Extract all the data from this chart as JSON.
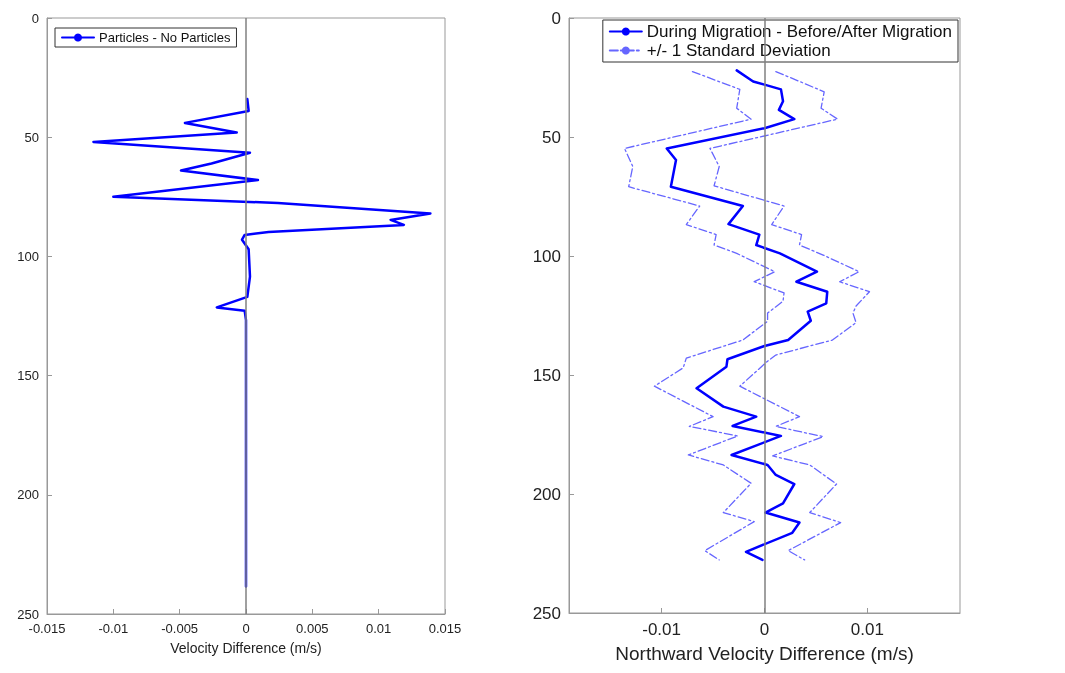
{
  "chart_data": [
    {
      "type": "line",
      "xlabel": "Velocity Difference (m/s)",
      "xlim": [
        -0.015,
        0.015
      ],
      "xticks": [
        -0.015,
        -0.01,
        -0.005,
        0,
        0.005,
        0.01,
        0.015
      ],
      "ylim": [
        250,
        0
      ],
      "yticks": [
        0,
        50,
        100,
        150,
        200,
        250
      ],
      "grid": false,
      "legend": "top left",
      "marker": "none",
      "ref_lines": [
        {
          "axis": "x",
          "value": 0,
          "color": "#808080"
        }
      ],
      "series": [
        {
          "name": "Particles - No Particles",
          "color": "#0000ff",
          "line_style": "solid",
          "x": [
            0.0001,
            0.0002,
            -0.0046,
            -0.0007,
            -0.0115,
            0.0003,
            -0.0026,
            -0.0049,
            0.0009,
            -0.01,
            0.0024,
            0.0139,
            0.0109,
            0.0119,
            0.0017,
            -0.0001,
            -0.0003,
            0.0002,
            0.0003,
            0.0001,
            -0.0022,
            -0.0001,
            0,
            0
          ],
          "values": [
            34,
            39,
            44,
            48,
            52,
            56.5,
            61,
            64,
            68,
            75,
            77.6,
            82,
            84.7,
            86.8,
            89.8,
            91,
            93,
            97,
            108.5,
            117,
            121.4,
            122.8,
            126.7,
            238.5
          ]
        }
      ]
    },
    {
      "type": "line",
      "xlabel": "Northward Velocity Difference (m/s)",
      "xlim": [
        -0.019,
        0.019
      ],
      "xticks": [
        -0.01,
        0,
        0.01
      ],
      "ylim": [
        250,
        0
      ],
      "yticks": [
        0,
        50,
        100,
        150,
        200,
        250
      ],
      "grid": false,
      "legend": "top right",
      "marker": "none",
      "ref_lines": [
        {
          "axis": "x",
          "value": 0,
          "color": "#808080"
        }
      ],
      "series": [
        {
          "name": "During Migration - Before/After Migration",
          "color": "#0000ff",
          "line_style": "solid",
          "x": [
            -0.0027,
            -0.0011,
            0,
            0.0016,
            0.0018,
            0.0014,
            0.0029,
            0,
            -0.0095,
            -0.0086,
            -0.0091,
            -0.0021,
            -0.0035,
            -0.0005,
            -0.0008,
            0.0015,
            0.0051,
            0.0031,
            0.0061,
            0.006,
            0.0042,
            0.0045,
            0.0023,
            0,
            -0.0036,
            -0.0037,
            -0.0066,
            -0.004,
            -0.0008,
            -0.0031,
            0.0016,
            -0.0032,
            0.0003,
            0.0011,
            0.0029,
            0.0018,
            0.0001,
            0.0034,
            0.0027,
            -0.0018,
            -0.0002
          ],
          "values": [
            22,
            26.7,
            28,
            30,
            35,
            38.6,
            42.5,
            46.3,
            54.8,
            59.7,
            70.9,
            79,
            86.6,
            91,
            95.4,
            98.9,
            106.6,
            110.8,
            115,
            119.9,
            123.4,
            127.2,
            135.3,
            137.8,
            143.4,
            146.5,
            155.6,
            163.3,
            167.5,
            171.4,
            175.6,
            183.6,
            187.8,
            192,
            195.8,
            203.9,
            207.8,
            212,
            216.3,
            224.3,
            227.7
          ]
        },
        {
          "name": "+/- 1 Standard Deviation",
          "color": "#6666ff",
          "line_style": "dashed",
          "x": [
            -0.007,
            -0.0024,
            -0.0027,
            -0.0013,
            -0.0136,
            -0.0128,
            -0.0132,
            -0.0063,
            -0.0076,
            -0.0047,
            -0.0049,
            -0.0027,
            0.001,
            -0.001,
            0.0019,
            0.0018,
            0.0003,
            0.0003,
            -0.0021,
            -0.0076,
            -0.0079,
            -0.0107,
            -0.005,
            -0.0073,
            -0.0026,
            -0.0074,
            -0.004,
            -0.0013,
            -0.004,
            -0.001,
            -0.0058,
            -0.0044
          ],
          "values": [
            22.5,
            30,
            37.9,
            42.5,
            54.8,
            62.4,
            70.9,
            79,
            86.8,
            91,
            95.4,
            98.9,
            106.6,
            110.8,
            115.5,
            119,
            124,
            127.4,
            135.3,
            142.9,
            147,
            154.7,
            167.5,
            171.6,
            175.6,
            183.6,
            187.8,
            195.5,
            207.8,
            211.6,
            223.8,
            227.7
          ]
        },
        {
          "color": "#6666ff",
          "line_style": "dashed",
          "x": [
            0.0011,
            0.0058,
            0.0055,
            0.0071,
            -0.0053,
            -0.0044,
            -0.0049,
            0.0019,
            0.0007,
            0.0036,
            0.0034,
            0.0057,
            0.0092,
            0.0073,
            0.0102,
            0.0089,
            0.0086,
            0.0089,
            0.0066,
            0.0011,
            0.0003,
            -0.0024,
            0.0034,
            0.0011,
            0.0057,
            0.0008,
            0.0044,
            0.007,
            0.0044,
            0.0074,
            0.0023,
            0.0039
          ],
          "values": [
            22.5,
            31,
            37.9,
            42.5,
            54.8,
            62.4,
            70.5,
            79,
            86.8,
            91,
            95.4,
            99.6,
            106.6,
            110.8,
            115,
            121,
            124,
            128,
            135.3,
            141.6,
            144.2,
            154.7,
            167.5,
            171.6,
            175.9,
            184,
            187.8,
            195.8,
            207.8,
            212,
            223.8,
            227.7
          ]
        }
      ]
    }
  ]
}
